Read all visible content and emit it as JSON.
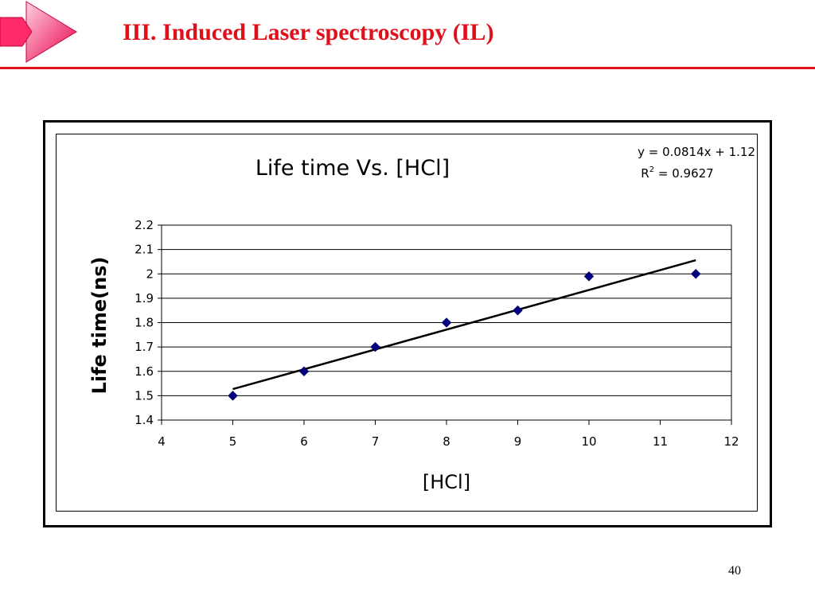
{
  "slide": {
    "title": "III.  Induced Laser spectroscopy (IL)",
    "page_number": "40",
    "accent_color": "#e0101a",
    "logo_icon": "pink-arrow-icon"
  },
  "chart_data": {
    "type": "scatter",
    "title": "Life time Vs. [HCl]",
    "xlabel": "[HCl]",
    "ylabel": "Life time(ns)",
    "xlim": [
      4,
      12
    ],
    "ylim": [
      1.4,
      2.2
    ],
    "xticks": [
      "4",
      "5",
      "6",
      "7",
      "8",
      "9",
      "10",
      "11",
      "12"
    ],
    "yticks": [
      "1.4",
      "1.5",
      "1.6",
      "1.7",
      "1.8",
      "1.9",
      "2",
      "2.1",
      "2.2"
    ],
    "grid": "horizontal",
    "marker": "diamond",
    "marker_color": "#000080",
    "points": [
      {
        "x": 5,
        "y": 1.5
      },
      {
        "x": 6,
        "y": 1.6
      },
      {
        "x": 7,
        "y": 1.7
      },
      {
        "x": 8,
        "y": 1.8
      },
      {
        "x": 9,
        "y": 1.85
      },
      {
        "x": 10,
        "y": 1.99
      },
      {
        "x": 11.5,
        "y": 2.0
      }
    ],
    "trendline": {
      "x_range": [
        5,
        11.5
      ],
      "slope": 0.0814,
      "intercept": 1.12,
      "equation": "y = 0.0814x + 1.12",
      "r2_prefix": "R",
      "r2_sup": "2",
      "r2_value": " = 0.9627"
    }
  }
}
